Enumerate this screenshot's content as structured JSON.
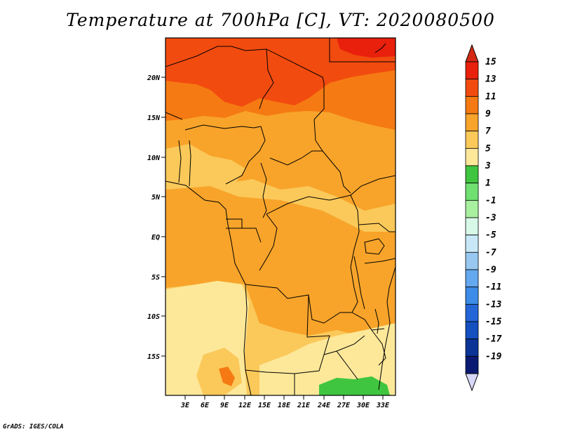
{
  "title": "Temperature at 700hPa [C], VT: 2020080500",
  "credit": "GrADS: IGES/COLA",
  "map": {
    "x_labels": [
      "3E",
      "6E",
      "9E",
      "12E",
      "15E",
      "18E",
      "21E",
      "24E",
      "27E",
      "30E",
      "33E"
    ],
    "y_labels": [
      "20N",
      "15N",
      "10N",
      "5N",
      "EQ",
      "5S",
      "10S",
      "15S"
    ]
  },
  "colorbar": {
    "labels": [
      "15",
      "13",
      "11",
      "9",
      "7",
      "5",
      "3",
      "1",
      "-1",
      "-3",
      "-5",
      "-7",
      "-9",
      "-11",
      "-13",
      "-15",
      "-17",
      "-19"
    ],
    "colors": [
      "#e8200c",
      "#f24b0f",
      "#f57a13",
      "#f8a42a",
      "#fbc95a",
      "#fde89a",
      "#3fc53f",
      "#70e070",
      "#a8f0a0",
      "#d8f8e8",
      "#c8e8f8",
      "#98c8f0",
      "#64a8f0",
      "#3c8ce8",
      "#2466d8",
      "#1450c0",
      "#0c3496",
      "#0a1a72"
    ],
    "top_color": "#d42a14",
    "bottom_color": "#d8d8f8"
  },
  "field_colors": {
    "c13": "#f24b0f",
    "c11": "#f57a13",
    "c9": "#f8a42a",
    "c7": "#fbc95a",
    "c5": "#fde89a",
    "c3": "#3fc53f"
  }
}
